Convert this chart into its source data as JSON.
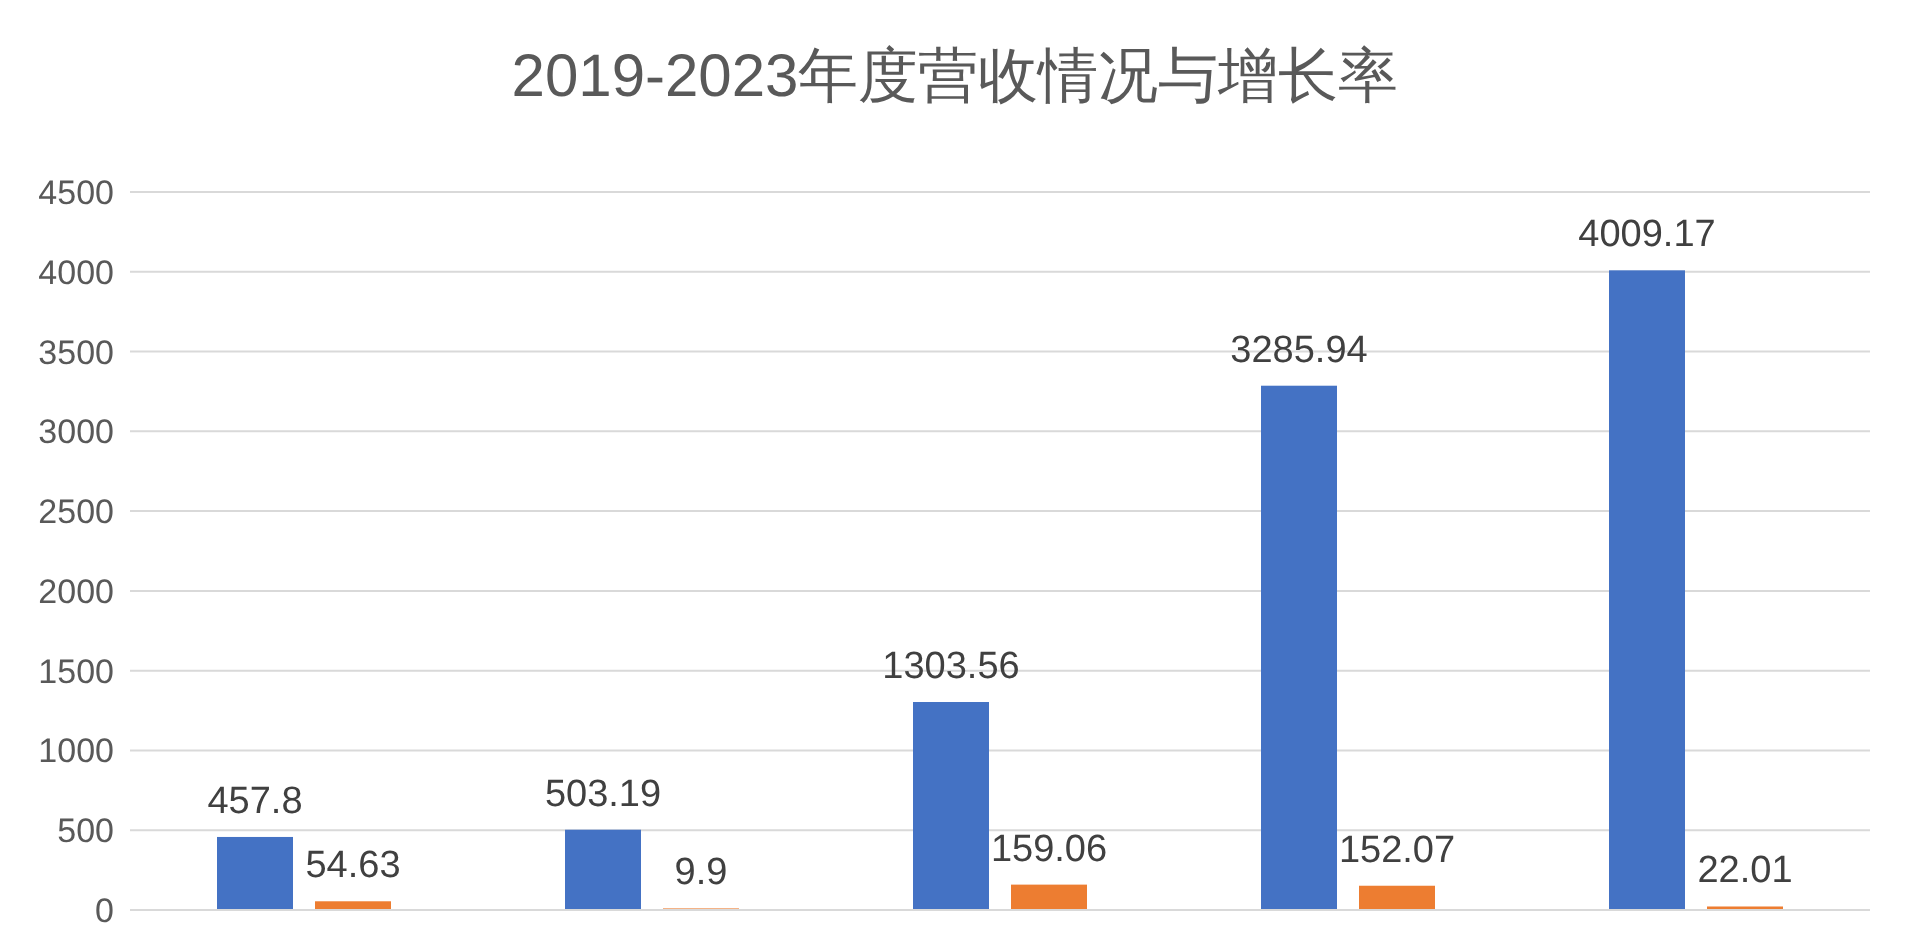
{
  "chart_data": {
    "type": "bar",
    "title": "2019-2023年度营收情况与增长率",
    "categories": [
      null,
      null,
      null,
      null,
      null
    ],
    "series": [
      {
        "color": "#4472c4",
        "values": [
          457.8,
          503.19,
          1303.56,
          3285.94,
          4009.17
        ]
      },
      {
        "color": "#ed7d31",
        "values": [
          54.63,
          9.9,
          159.06,
          152.07,
          22.01
        ]
      }
    ],
    "ylim": [
      0,
      4500
    ],
    "yticks": [
      0,
      500,
      1000,
      1500,
      2000,
      2500,
      3000,
      3500,
      4000,
      4500
    ],
    "grid": "y",
    "data_labels": true
  }
}
